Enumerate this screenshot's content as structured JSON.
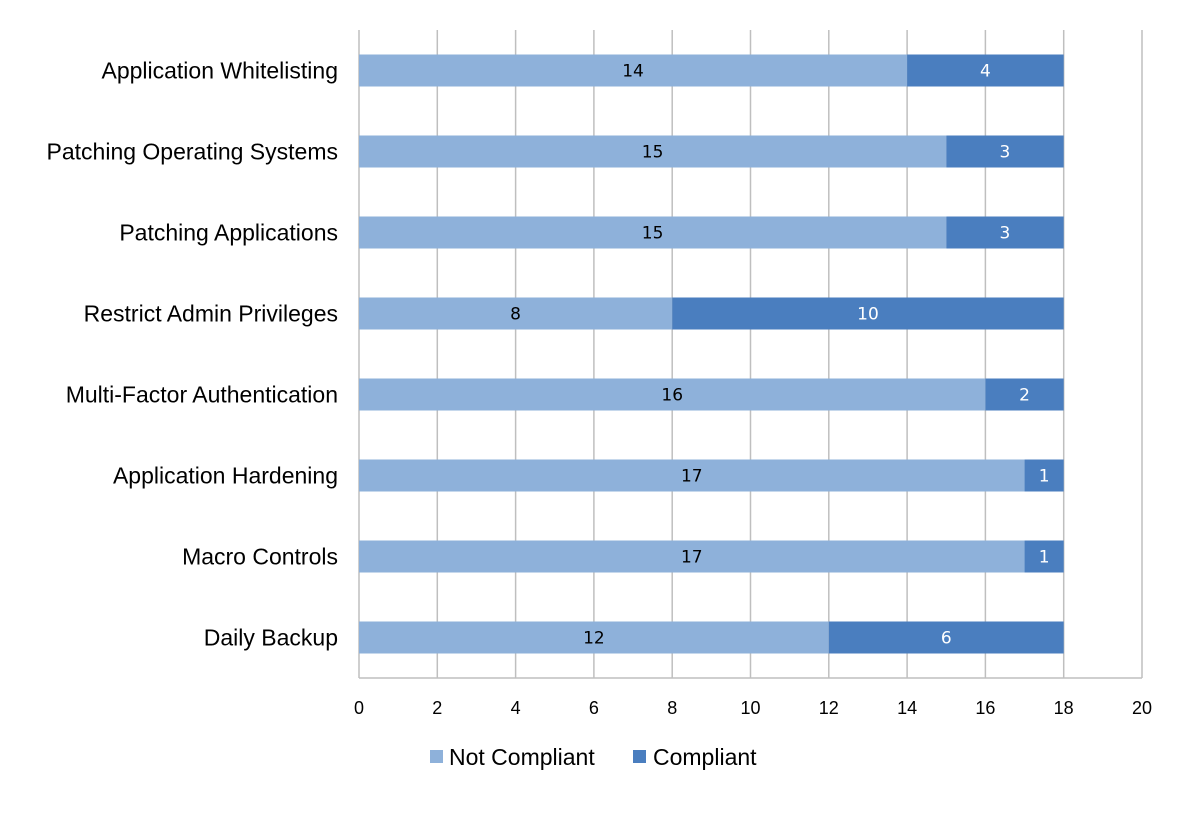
{
  "chart_data": {
    "type": "bar",
    "orientation": "horizontal",
    "stacked": true,
    "categories": [
      "Application Whitelisting",
      "Patching Operating Systems",
      "Patching Applications",
      "Restrict Admin Privileges",
      "Multi-Factor Authentication",
      "Application Hardening",
      "Macro Controls",
      "Daily Backup"
    ],
    "series": [
      {
        "name": "Not Compliant",
        "color": "#8eb1da",
        "values": [
          14,
          15,
          15,
          8,
          16,
          17,
          17,
          12
        ]
      },
      {
        "name": "Compliant",
        "color": "#4a7ebf",
        "values": [
          4,
          3,
          3,
          10,
          2,
          1,
          1,
          6
        ]
      }
    ],
    "x_ticks": [
      "0",
      "2",
      "4",
      "6",
      "8",
      "10",
      "12",
      "14",
      "16",
      "18",
      "20"
    ],
    "xlim": [
      0,
      20
    ],
    "grid": true,
    "data_labels": true,
    "legend_position": "bottom",
    "title": "",
    "xlabel": "",
    "ylabel": ""
  }
}
